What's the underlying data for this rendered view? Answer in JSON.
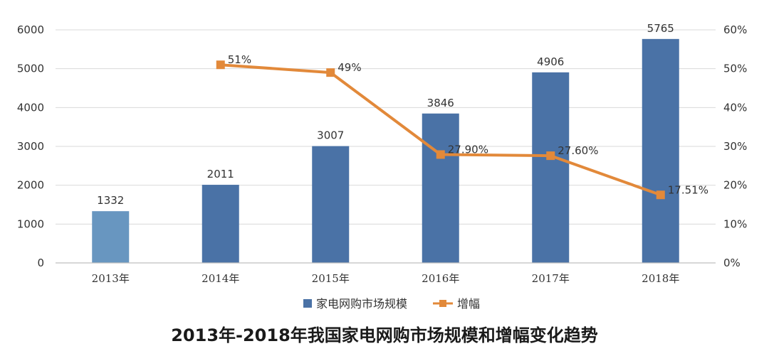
{
  "chart_data": {
    "type": "bar",
    "title": "2013年-2018年我国家电网购市场规模和增幅变化趋势",
    "categories": [
      "2013年",
      "2014年",
      "2015年",
      "2016年",
      "2017年",
      "2018年"
    ],
    "series": [
      {
        "name": "家电网购市场规模",
        "type": "bar",
        "axis": "left",
        "values": [
          1332,
          2011,
          3007,
          3846,
          4906,
          5765
        ],
        "labels": [
          "1332",
          "2011",
          "3007",
          "3846",
          "4906",
          "5765"
        ]
      },
      {
        "name": "增幅",
        "type": "line",
        "axis": "right",
        "values": [
          null,
          51,
          49,
          27.9,
          27.6,
          17.51
        ],
        "labels": [
          "",
          "51%",
          "49%",
          "27.90%",
          "27.60%",
          "17.51%"
        ]
      }
    ],
    "y_left": {
      "min": 0,
      "max": 6000,
      "ticks": [
        "0",
        "1000",
        "2000",
        "3000",
        "4000",
        "5000",
        "6000"
      ]
    },
    "y_right": {
      "min": 0,
      "max": 60,
      "ticks": [
        "0%",
        "10%",
        "20%",
        "30%",
        "40%",
        "50%",
        "60%"
      ]
    },
    "grid": true,
    "legend_position": "bottom"
  },
  "colors": {
    "bar": "#4a72a6",
    "bar_first": "#6896c0",
    "line": "#e2893a",
    "grid": "#d9d9d9",
    "axis": "#bfbfbf"
  }
}
